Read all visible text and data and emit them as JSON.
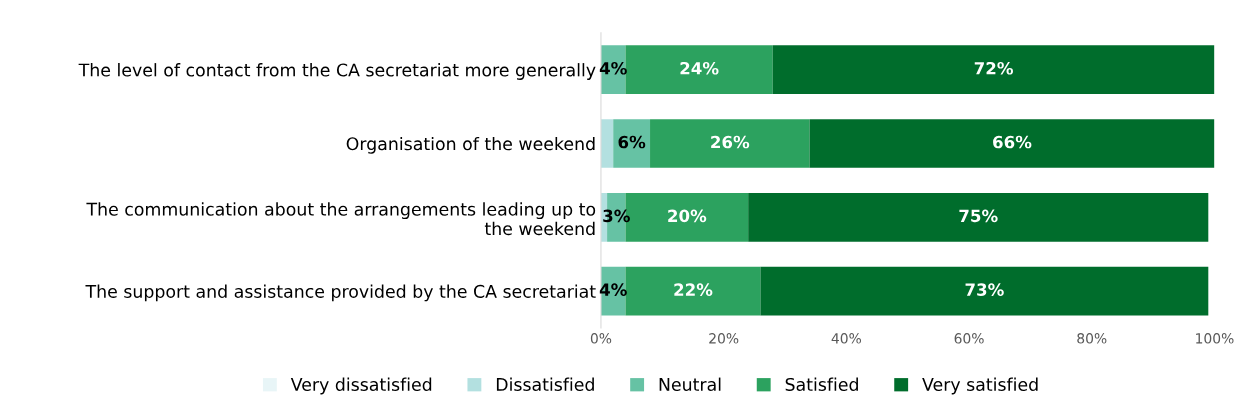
{
  "chart_data": {
    "type": "bar",
    "orientation": "horizontal",
    "stacked": true,
    "categories": [
      "The level of contact from the CA secretariat more generally",
      "Organisation of the weekend",
      "The communication about the arrangements leading up to\nthe weekend",
      "The support and assistance provided by the CA secretariat"
    ],
    "series": [
      {
        "name": "Very dissatisfied",
        "color": "#e8f5f7",
        "values": [
          0,
          0,
          0,
          0
        ],
        "value_labels": [
          null,
          null,
          null,
          null
        ]
      },
      {
        "name": "Dissatisfied",
        "color": "#b3e0e0",
        "values": [
          0,
          2,
          1,
          0
        ],
        "value_labels": [
          null,
          null,
          null,
          null
        ]
      },
      {
        "name": "Neutral",
        "color": "#66c2a4",
        "values": [
          4,
          6,
          3,
          4
        ],
        "value_labels": [
          "4%",
          "6%",
          "3%",
          "4%"
        ]
      },
      {
        "name": "Satisfied",
        "color": "#2ca25f",
        "values": [
          24,
          26,
          20,
          22
        ],
        "value_labels": [
          "24%",
          "26%",
          "20%",
          "22%"
        ]
      },
      {
        "name": "Very satisfied",
        "color": "#006d2c",
        "values": [
          72,
          66,
          75,
          73
        ],
        "value_labels": [
          "72%",
          "66%",
          "75%",
          "73%"
        ]
      }
    ],
    "xlim": [
      0,
      100
    ],
    "xticks": [
      {
        "value": 0,
        "label": "0%"
      },
      {
        "value": 20,
        "label": "20%"
      },
      {
        "value": 40,
        "label": "40%"
      },
      {
        "value": 60,
        "label": "60%"
      },
      {
        "value": 80,
        "label": "80%"
      },
      {
        "value": 100,
        "label": "100%"
      }
    ],
    "legend": "bottom",
    "grid": false
  }
}
